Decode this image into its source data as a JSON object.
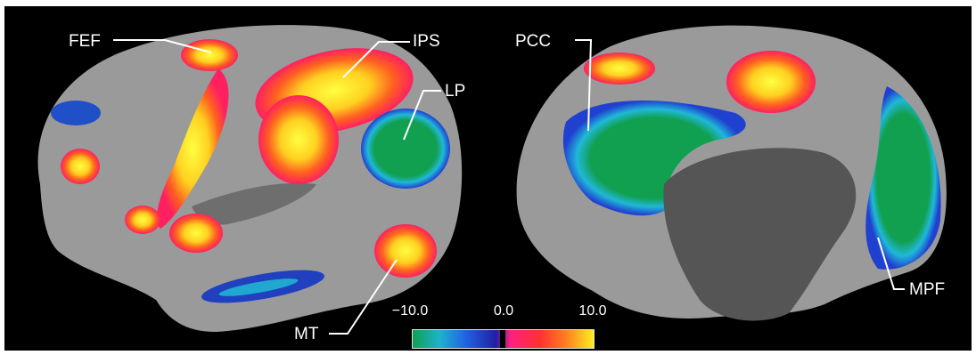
{
  "labels": {
    "fef": "FEF",
    "ips": "IPS",
    "lp": "LP",
    "mt": "MT",
    "pcc": "PCC",
    "mpf": "MPF"
  },
  "colorbar": {
    "min_label": "−10.0",
    "mid_label": "0.0",
    "max_label": "10.0",
    "min_value": -10.0,
    "mid_value": 0.0,
    "max_value": 10.0,
    "negative_colors": [
      "#10a050",
      "#20b0d0",
      "#2060e0",
      "#2020a0"
    ],
    "positive_colors": [
      "#ff2080",
      "#ff3030",
      "#ff8020",
      "#ffee20"
    ]
  },
  "colors": {
    "background": "#000000",
    "cortex": "#9a9a9a",
    "medial_wall": "#555555",
    "label_text": "#ffffff"
  }
}
